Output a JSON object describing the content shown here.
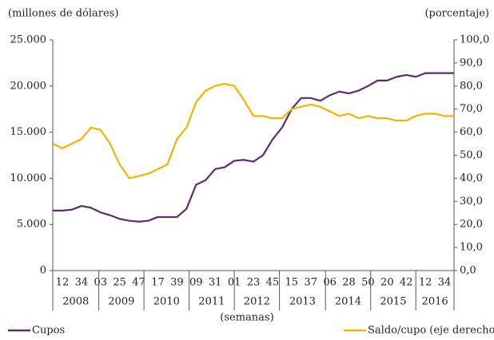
{
  "chart_data": {
    "type": "line",
    "y_label": "(millones de dólares)",
    "y2_label": "(porcentaje)",
    "x_label": "(semanas)",
    "categories": [
      null,
      "12",
      null,
      "34",
      null,
      "03",
      null,
      "25",
      null,
      "47",
      null,
      "17",
      null,
      "39",
      null,
      "09",
      null,
      "31",
      null,
      "01",
      null,
      "23",
      null,
      "45",
      null,
      "15",
      null,
      "37",
      null,
      "06",
      null,
      "28",
      null,
      "50",
      null,
      "20",
      null,
      "42",
      null,
      "12",
      null,
      "34",
      null
    ],
    "years": [
      "2008",
      "2009",
      "2010",
      "2011",
      "2012",
      "2013",
      "2014",
      "2015",
      "2016"
    ],
    "series": [
      {
        "name": "Cupos",
        "color": "#5c2d6e",
        "axis": "y",
        "values": [
          6500,
          6500,
          6600,
          7000,
          6800,
          6300,
          6000,
          5600,
          5400,
          5300,
          5400,
          5800,
          5800,
          5800,
          6700,
          9300,
          9800,
          11000,
          11200,
          11900,
          12000,
          11800,
          12500,
          14200,
          15500,
          17500,
          18700,
          18700,
          18400,
          19000,
          19400,
          19200,
          19500,
          20000,
          20600,
          20600,
          21000,
          21200,
          21000,
          21400,
          21400,
          21400,
          21400
        ]
      },
      {
        "name": "Saldo/cupo (eje derecho)",
        "color": "#f0b500",
        "axis": "y2",
        "values": [
          55,
          53,
          55,
          57,
          62,
          61,
          55,
          46,
          40,
          41,
          42,
          44,
          46,
          57,
          62,
          73,
          78,
          80,
          81,
          80,
          74,
          67,
          67,
          66,
          66,
          70,
          71,
          72,
          71,
          69,
          67,
          68,
          66,
          67,
          66,
          66,
          65,
          65,
          67,
          68,
          68,
          67,
          67
        ]
      }
    ],
    "ylim": [
      0,
      25000
    ],
    "yticks": [
      0,
      {
        "value": 5000,
        "label": "5.000"
      },
      {
        "value": 10000,
        "label": "10.000"
      },
      {
        "value": 15000,
        "label": "15.000"
      },
      {
        "value": 20000,
        "label": "20.000"
      },
      {
        "value": 25000,
        "label": "25.000"
      }
    ],
    "y2lim": [
      0,
      100
    ],
    "y2ticks": [
      {
        "value": 0,
        "label": "0,0"
      },
      {
        "value": 10,
        "label": "10,0"
      },
      {
        "value": 20,
        "label": "20,0"
      },
      {
        "value": 30,
        "label": "30,0"
      },
      {
        "value": 40,
        "label": "40,0"
      },
      {
        "value": 50,
        "label": "50,0"
      },
      {
        "value": 60,
        "label": "60,0"
      },
      {
        "value": 70,
        "label": "70,0"
      },
      {
        "value": 80,
        "label": "80,0"
      },
      {
        "value": 90,
        "label": "90,0"
      },
      {
        "value": 100,
        "label": "100,0"
      }
    ],
    "grid": false
  }
}
